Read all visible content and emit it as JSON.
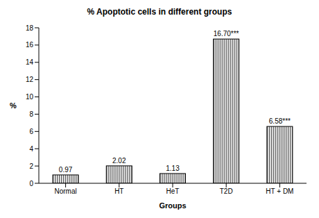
{
  "chart_data": {
    "type": "bar",
    "title": "% Apoptotic cells in different groups",
    "x_label": "Groups",
    "y_label": "%",
    "categories": [
      "Normal",
      "HT",
      "HeT",
      "T2D",
      "HT + DM"
    ],
    "values": [
      0.97,
      2.02,
      1.13,
      16.7,
      6.58
    ],
    "value_labels": [
      "0.97",
      "2.02",
      "1.13",
      "16.70***",
      "6.58***"
    ],
    "color": "#000000",
    "ylim": [
      0,
      18
    ],
    "yticks": [
      0,
      2,
      4,
      6,
      8,
      10,
      12,
      14,
      16,
      18
    ],
    "grid": false,
    "data_labels": true
  }
}
